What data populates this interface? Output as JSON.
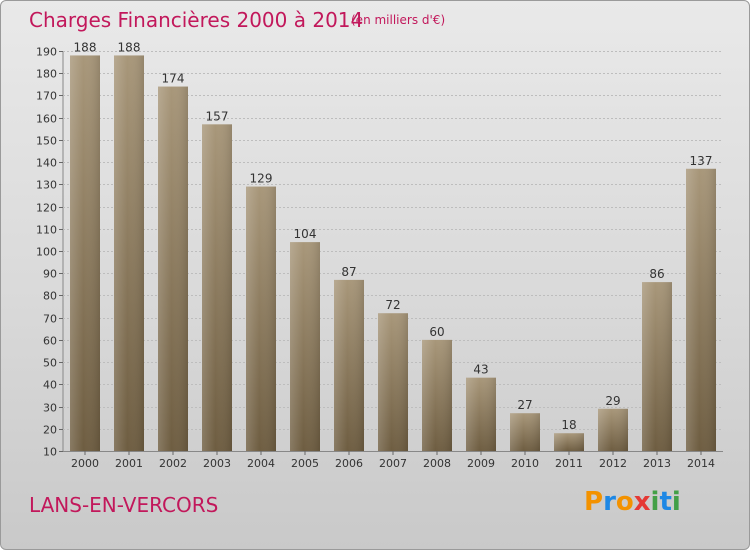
{
  "header": {
    "title": "Charges Financières 2000 à 2014",
    "subtitle": "(en milliers d'€)"
  },
  "footer": {
    "city": "LANS-EN-VERCORS",
    "logo_letters": [
      "P",
      "r",
      "o",
      "x",
      "i",
      "t",
      "i"
    ],
    "logo_colors": [
      "#f39200",
      "#1e88e5",
      "#f39200",
      "#e53935",
      "#43a047",
      "#1e88e5",
      "#43a047"
    ]
  },
  "colors": {
    "title": "#c2185b",
    "bar_top": "#a8977a",
    "bar_bottom": "#6e5d41",
    "grid": "#bdbdbd",
    "axis_text": "#333333"
  },
  "chart_data": {
    "type": "bar",
    "categories": [
      "2000",
      "2001",
      "2002",
      "2003",
      "2004",
      "2005",
      "2006",
      "2007",
      "2008",
      "2009",
      "2010",
      "2011",
      "2012",
      "2013",
      "2014"
    ],
    "values": [
      188,
      188,
      174,
      157,
      129,
      104,
      87,
      72,
      60,
      43,
      27,
      18,
      29,
      86,
      137
    ],
    "ylim": [
      10,
      190
    ],
    "yticks": [
      10,
      20,
      30,
      40,
      50,
      60,
      70,
      80,
      90,
      100,
      110,
      120,
      130,
      140,
      150,
      160,
      170,
      180,
      190
    ],
    "grid": true,
    "xlabel": "",
    "ylabel": ""
  }
}
